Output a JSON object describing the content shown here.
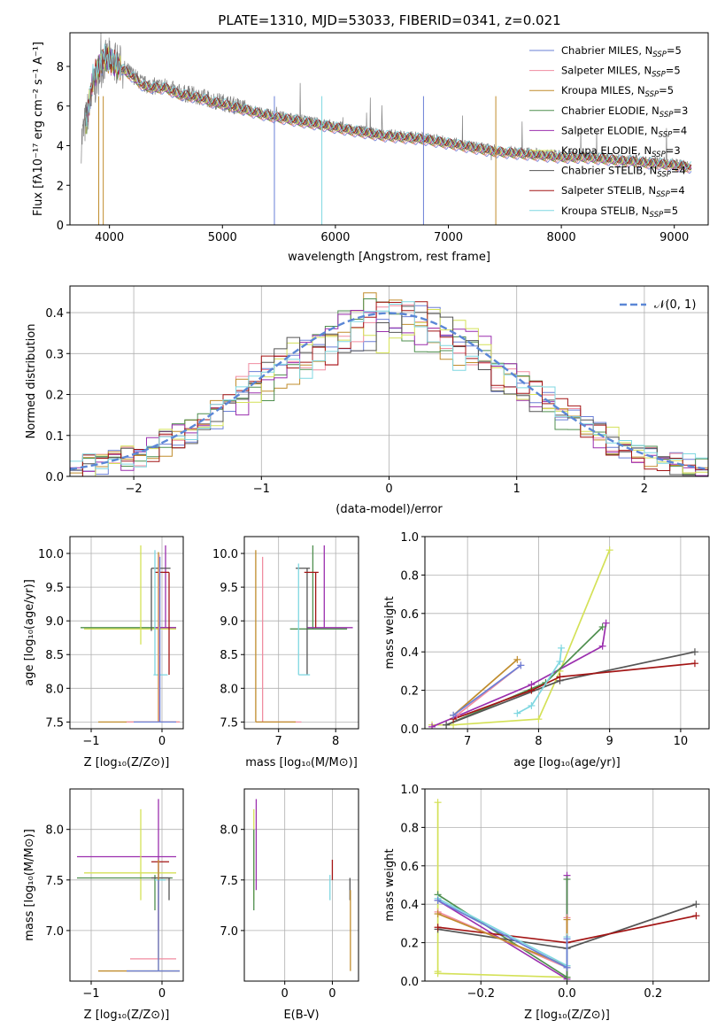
{
  "colors": [
    "#6a7fd6",
    "#f08ca0",
    "#c08c2c",
    "#4f8f4f",
    "#9b2fae",
    "#d4e157",
    "#555555",
    "#a31515",
    "#7fd7e1"
  ],
  "chart_data": [
    {
      "id": "spectrum",
      "type": "line",
      "title": "PLATE=1310, MJD=53033, FIBERID=0341, z=0.021",
      "xlabel": "wavelength [Angstrom, rest frame]",
      "ylabel": "Flux [fλ10⁻¹⁷ erg cm⁻² s⁻¹ A⁻¹]",
      "xlim": [
        3650,
        9300
      ],
      "ylim": [
        0,
        9.7
      ],
      "xticks": [
        4000,
        5000,
        6000,
        7000,
        8000,
        9000
      ],
      "yticks": [
        0,
        2,
        4,
        6,
        8
      ],
      "data_color": "#808080",
      "data_x": [
        3750,
        3800,
        3850,
        3900,
        3950,
        4000,
        4100,
        4200,
        4300,
        4400,
        4500,
        4600,
        4700,
        4800,
        4900,
        5000,
        5200,
        5400,
        5600,
        5800,
        6000,
        6200,
        6400,
        6600,
        6800,
        7000,
        7200,
        7400,
        7600,
        7800,
        8000,
        8200,
        8400,
        8600,
        8800,
        9000,
        9150
      ],
      "data_y": [
        4.2,
        5.5,
        6.6,
        7.6,
        8.2,
        8.4,
        8.0,
        7.6,
        7.1,
        7.0,
        7.0,
        6.7,
        6.6,
        6.5,
        6.3,
        6.2,
        5.9,
        5.6,
        5.4,
        5.2,
        5.0,
        4.8,
        4.6,
        4.5,
        4.4,
        4.2,
        4.0,
        3.8,
        3.7,
        3.6,
        3.5,
        3.5,
        3.4,
        3.3,
        3.2,
        3.1,
        3.0
      ],
      "model_x": [
        3750,
        3800,
        3850,
        3900,
        3950,
        4000,
        4100,
        4200,
        4300,
        4400,
        4500,
        4600,
        4700,
        4800,
        4900,
        5000,
        5200,
        5400,
        5600,
        5800,
        6000,
        6200,
        6400,
        6600,
        6800,
        7000,
        7200,
        7400,
        7600,
        7800,
        8000,
        8200,
        8400,
        8600,
        8800,
        9000,
        9150
      ],
      "model_y": [
        4.0,
        5.3,
        7.3,
        7.9,
        8.4,
        8.3,
        7.9,
        7.5,
        7.0,
        6.9,
        6.9,
        6.6,
        6.5,
        6.4,
        6.2,
        6.1,
        5.8,
        5.5,
        5.3,
        5.1,
        4.9,
        4.7,
        4.5,
        4.4,
        4.3,
        4.1,
        3.9,
        3.7,
        3.6,
        3.5,
        3.4,
        3.4,
        3.3,
        3.2,
        3.1,
        3.0,
        2.9
      ],
      "legend": [
        {
          "base": "Chabrier MILES, N",
          "sub": "SSP",
          "suffix": "=5"
        },
        {
          "base": "Salpeter MILES, N",
          "sub": "SSP",
          "suffix": "=5"
        },
        {
          "base": "Kroupa MILES, N",
          "sub": "SSP",
          "suffix": "=5"
        },
        {
          "base": "Chabrier ELODIE, N",
          "sub": "SSP",
          "suffix": "=3"
        },
        {
          "base": "Salpeter ELODIE, N",
          "sub": "SSP",
          "suffix": "=4"
        },
        {
          "base": "Kroupa ELODIE, N",
          "sub": "SSP",
          "suffix": "=3"
        },
        {
          "base": "Chabrier STELIB, N",
          "sub": "SSP",
          "suffix": "=4"
        },
        {
          "base": "Salpeter STELIB, N",
          "sub": "SSP",
          "suffix": "=4"
        },
        {
          "base": "Kroupa STELIB, N",
          "sub": "SSP",
          "suffix": "=5"
        }
      ],
      "legend_position": "upper-right"
    },
    {
      "id": "residuals",
      "type": "histogram",
      "xlabel": "(data-model)/error",
      "ylabel": "Normed distribution",
      "xlim": [
        -2.5,
        2.5
      ],
      "ylim": [
        0,
        0.465
      ],
      "xticks": [
        -2,
        -1,
        0,
        1,
        2
      ],
      "yticks": [
        0.0,
        0.1,
        0.2,
        0.3,
        0.4
      ],
      "grid": true,
      "bin_width": 0.1,
      "reference_label": "𝒩(0, 1)",
      "reference_color": "#5b87d6",
      "legend_position": "upper-right"
    },
    {
      "id": "age-vs-Z",
      "type": "errorbar",
      "xlabel": "Z [log₁₀(Z/Z⊙)]",
      "ylabel": "age  [log₁₀(age/yr)]",
      "xlim": [
        -1.3,
        0.3
      ],
      "ylim": [
        7.4,
        10.25
      ],
      "xticks": [
        -1,
        0
      ],
      "yticks": [
        7.5,
        8.0,
        8.5,
        9.0,
        9.5,
        10.0
      ],
      "grid": true,
      "points": [
        {
          "c": 3,
          "x": -0.35,
          "y": 8.9,
          "xe": [
            -1.15,
            0.2
          ],
          "ye": [
            8.9,
            8.9
          ]
        },
        {
          "c": 5,
          "x": -0.3,
          "y": 8.88,
          "xe": [
            -1.1,
            0.2
          ],
          "ye": [
            8.65,
            10.12
          ]
        },
        {
          "c": 4,
          "x": 0.05,
          "y": 8.9,
          "xe": [
            -0.1,
            0.2
          ],
          "ye": [
            8.9,
            10.12
          ]
        },
        {
          "c": 6,
          "x": -0.15,
          "y": 9.78,
          "xe": [
            -0.15,
            0.12
          ],
          "ye": [
            8.85,
            9.78
          ]
        },
        {
          "c": 7,
          "x": 0.1,
          "y": 9.72,
          "xe": [
            -0.1,
            0.1
          ],
          "ye": [
            8.2,
            9.72
          ]
        },
        {
          "c": 8,
          "x": -0.1,
          "y": 8.2,
          "xe": [
            -0.12,
            0.08
          ],
          "ye": [
            8.2,
            10.05
          ]
        },
        {
          "c": 2,
          "x": -0.05,
          "y": 7.5,
          "xe": [
            -0.9,
            0.25
          ],
          "ye": [
            7.5,
            10.02
          ]
        },
        {
          "c": 1,
          "x": -0.04,
          "y": 7.5,
          "xe": [
            -0.5,
            0.25
          ],
          "ye": [
            7.5,
            9.98
          ]
        },
        {
          "c": 0,
          "x": -0.03,
          "y": 7.5,
          "xe": [
            -0.4,
            0.2
          ],
          "ye": [
            7.5,
            9.95
          ]
        }
      ]
    },
    {
      "id": "age-vs-mass",
      "type": "errorbar",
      "xlabel": "mass [log₁₀(M/M⊙)]",
      "ylabel": "",
      "xlim": [
        6.4,
        8.4
      ],
      "ylim": [
        7.4,
        10.25
      ],
      "xticks": [
        7,
        8
      ],
      "yticks": [
        7.5,
        8.0,
        8.5,
        9.0,
        9.5,
        10.0
      ],
      "grid": true,
      "points": [
        {
          "c": 3,
          "x": 7.6,
          "y": 8.88,
          "xe": [
            7.2,
            8.2
          ],
          "ye": [
            8.88,
            10.12
          ]
        },
        {
          "c": 4,
          "x": 7.8,
          "y": 8.9,
          "xe": [
            7.5,
            8.3
          ],
          "ye": [
            8.9,
            10.12
          ]
        },
        {
          "c": 6,
          "x": 7.5,
          "y": 9.78,
          "xe": [
            7.3,
            7.55
          ],
          "ye": [
            8.2,
            9.78
          ]
        },
        {
          "c": 7,
          "x": 7.65,
          "y": 9.72,
          "xe": [
            7.45,
            7.7
          ],
          "ye": [
            8.9,
            9.72
          ]
        },
        {
          "c": 8,
          "x": 7.35,
          "y": 8.2,
          "xe": [
            7.35,
            7.55
          ],
          "ye": [
            8.2,
            9.85
          ]
        },
        {
          "c": 1,
          "x": 6.72,
          "y": 7.5,
          "xe": [
            6.6,
            7.4
          ],
          "ye": [
            7.5,
            9.95
          ]
        },
        {
          "c": 2,
          "x": 6.6,
          "y": 7.5,
          "xe": [
            6.6,
            7.3
          ],
          "ye": [
            7.5,
            10.05
          ]
        }
      ]
    },
    {
      "id": "mass-weight-vs-age",
      "type": "line",
      "xlabel": "age  [log₁₀(age/yr)]",
      "ylabel": "mass weight",
      "xlim": [
        6.4,
        10.4
      ],
      "ylim": [
        0,
        1
      ],
      "xticks": [
        7,
        8,
        9,
        10
      ],
      "yticks": [
        0.0,
        0.2,
        0.4,
        0.6,
        0.8,
        1.0
      ],
      "grid": true,
      "series": [
        {
          "c": 5,
          "x": [
            6.5,
            6.8,
            8.0,
            8.3,
            9.0
          ],
          "y": [
            0.02,
            0.02,
            0.05,
            0.3,
            0.93
          ]
        },
        {
          "c": 4,
          "x": [
            6.5,
            7.9,
            8.9,
            8.95
          ],
          "y": [
            0.01,
            0.23,
            0.43,
            0.55
          ]
        },
        {
          "c": 3,
          "x": [
            6.7,
            8.1,
            8.9
          ],
          "y": [
            0.02,
            0.24,
            0.53
          ]
        },
        {
          "c": 6,
          "x": [
            6.7,
            8.3,
            10.2
          ],
          "y": [
            0.02,
            0.25,
            0.4
          ]
        },
        {
          "c": 7,
          "x": [
            6.8,
            7.9,
            8.3,
            10.2
          ],
          "y": [
            0.05,
            0.2,
            0.27,
            0.34
          ]
        },
        {
          "c": 2,
          "x": [
            6.8,
            7.7
          ],
          "y": [
            0.07,
            0.36
          ]
        },
        {
          "c": 1,
          "x": [
            6.85,
            7.75
          ],
          "y": [
            0.07,
            0.33
          ]
        },
        {
          "c": 8,
          "x": [
            7.7,
            7.9,
            8.3,
            8.32
          ],
          "y": [
            0.08,
            0.12,
            0.35,
            0.42
          ]
        },
        {
          "c": 0,
          "x": [
            6.8,
            7.75
          ],
          "y": [
            0.07,
            0.33
          ]
        }
      ]
    },
    {
      "id": "mass-vs-Z",
      "type": "errorbar",
      "xlabel": "Z [log₁₀(Z/Z⊙)]",
      "ylabel": "mass [log₁₀(M/M⊙)]",
      "xlim": [
        -1.3,
        0.3
      ],
      "ylim": [
        6.5,
        8.4
      ],
      "xticks": [
        -1,
        0
      ],
      "yticks": [
        7.0,
        7.5,
        8.0
      ],
      "grid": true,
      "points": [
        {
          "c": 4,
          "x": -0.05,
          "y": 7.73,
          "xe": [
            -1.2,
            0.2
          ],
          "ye": [
            7.0,
            8.3
          ]
        },
        {
          "c": 5,
          "x": -0.3,
          "y": 7.57,
          "xe": [
            -1.1,
            0.2
          ],
          "ye": [
            7.3,
            8.2
          ]
        },
        {
          "c": 3,
          "x": -0.1,
          "y": 7.52,
          "xe": [
            -1.2,
            0.15
          ],
          "ye": [
            7.2,
            7.55
          ]
        },
        {
          "c": 7,
          "x": 0.1,
          "y": 7.68,
          "xe": [
            -0.15,
            0.1
          ],
          "ye": [
            7.68,
            7.68
          ]
        },
        {
          "c": 8,
          "x": -0.05,
          "y": 7.5,
          "xe": [
            -0.1,
            0.05
          ],
          "ye": [
            7.25,
            7.6
          ]
        },
        {
          "c": 6,
          "x": 0.1,
          "y": 7.52,
          "xe": [
            -0.15,
            0.12
          ],
          "ye": [
            7.3,
            7.52
          ]
        },
        {
          "c": 1,
          "x": -0.05,
          "y": 6.72,
          "xe": [
            -0.45,
            0.2
          ],
          "ye": [
            6.72,
            7.7
          ]
        },
        {
          "c": 2,
          "x": -0.05,
          "y": 6.6,
          "xe": [
            -0.9,
            0.25
          ],
          "ye": [
            6.6,
            7.7
          ]
        },
        {
          "c": 0,
          "x": -0.05,
          "y": 6.6,
          "xe": [
            -0.5,
            0.25
          ],
          "ye": [
            6.6,
            7.5
          ]
        }
      ]
    },
    {
      "id": "mass-vs-EBV",
      "type": "errorbar",
      "xlabel": "E(B-V)",
      "ylabel": "",
      "xlim": [
        0.015,
        0.255
      ],
      "ylim": [
        6.5,
        8.4
      ],
      "xticks": [
        0.1,
        0.2
      ],
      "yticks": [
        7.0,
        7.5,
        8.0
      ],
      "grid": true,
      "points": [
        {
          "c": 5,
          "x": 0.035,
          "y": 7.75,
          "xe": [
            0.035,
            0.035
          ],
          "ye": [
            7.3,
            8.2
          ]
        },
        {
          "c": 4,
          "x": 0.04,
          "y": 7.8,
          "xe": [
            0.04,
            0.04
          ],
          "ye": [
            7.4,
            8.3
          ]
        },
        {
          "c": 3,
          "x": 0.035,
          "y": 7.5,
          "xe": [
            0.035,
            0.035
          ],
          "ye": [
            7.2,
            8.0
          ]
        },
        {
          "c": 7,
          "x": 0.2,
          "y": 7.6,
          "xe": [
            0.2,
            0.2
          ],
          "ye": [
            7.5,
            7.7
          ]
        },
        {
          "c": 8,
          "x": 0.195,
          "y": 7.45,
          "xe": [
            0.195,
            0.195
          ],
          "ye": [
            7.3,
            7.55
          ]
        },
        {
          "c": 6,
          "x": 0.237,
          "y": 7.4,
          "xe": [
            0.237,
            0.237
          ],
          "ye": [
            7.3,
            7.52
          ]
        },
        {
          "c": 2,
          "x": 0.238,
          "y": 7.0,
          "xe": [
            0.238,
            0.238
          ],
          "ye": [
            6.6,
            7.4
          ]
        }
      ]
    },
    {
      "id": "mass-weight-vs-Z",
      "type": "line",
      "xlabel": "Z [log₁₀(Z/Z⊙)]",
      "ylabel": "mass weight",
      "xlim": [
        -0.33,
        0.33
      ],
      "ylim": [
        0,
        1
      ],
      "xticks": [
        -0.2,
        0.0,
        0.2
      ],
      "yticks": [
        0.0,
        0.2,
        0.4,
        0.6,
        0.8,
        1.0
      ],
      "grid": true,
      "series": [
        {
          "c": 5,
          "x": [
            -0.3,
            -0.3,
            -0.3,
            0.0
          ],
          "y": [
            0.93,
            0.05,
            0.04,
            0.02
          ]
        },
        {
          "c": 4,
          "x": [
            -0.3,
            0.0,
            0.0
          ],
          "y": [
            0.42,
            0.01,
            0.55
          ]
        },
        {
          "c": 3,
          "x": [
            -0.3,
            0.0,
            0.0
          ],
          "y": [
            0.45,
            0.02,
            0.53
          ]
        },
        {
          "c": 6,
          "x": [
            -0.3,
            0.0,
            0.3
          ],
          "y": [
            0.27,
            0.17,
            0.4
          ]
        },
        {
          "c": 7,
          "x": [
            -0.3,
            0.0,
            0.3
          ],
          "y": [
            0.28,
            0.2,
            0.34
          ]
        },
        {
          "c": 1,
          "x": [
            -0.3,
            0.0,
            0.0
          ],
          "y": [
            0.36,
            0.07,
            0.33
          ]
        },
        {
          "c": 2,
          "x": [
            -0.3,
            0.0,
            0.0
          ],
          "y": [
            0.35,
            0.08,
            0.32
          ]
        },
        {
          "c": 8,
          "x": [
            -0.3,
            0.0,
            0.0
          ],
          "y": [
            0.43,
            0.08,
            0.23
          ]
        },
        {
          "c": 0,
          "x": [
            -0.3,
            0.0,
            0.0
          ],
          "y": [
            0.42,
            0.07,
            0.22
          ]
        }
      ]
    }
  ]
}
